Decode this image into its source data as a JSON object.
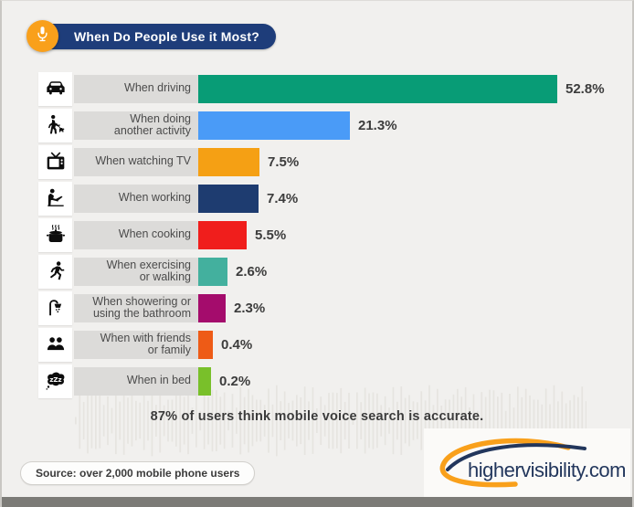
{
  "header": {
    "title": "When Do People Use it Most?",
    "badge_icon": "microphone-icon",
    "pill_color": "#1e3d7a",
    "badge_color": "#f9a01b"
  },
  "chart_data": {
    "type": "bar",
    "orientation": "horizontal",
    "unit": "percent",
    "title": "When Do People Use it Most?",
    "categories": [
      "When driving",
      "When doing\nanother activity",
      "When watching TV",
      "When working",
      "When cooking",
      "When exercising\nor walking",
      "When showering or\nusing the bathroom",
      "When with friends\nor family",
      "When in bed"
    ],
    "values": [
      52.8,
      21.3,
      7.5,
      7.4,
      5.5,
      2.6,
      2.3,
      0.4,
      0.2
    ],
    "value_labels": [
      "52.8%",
      "21.3%",
      "7.5%",
      "7.4%",
      "5.5%",
      "2.6%",
      "2.3%",
      "0.4%",
      "0.2%"
    ],
    "bar_colors": [
      "#089c76",
      "#4a9bf7",
      "#f5a014",
      "#1e3c70",
      "#f01e1c",
      "#43b09e",
      "#a40c6c",
      "#ee5b16",
      "#79c02a"
    ],
    "icons": [
      "car-icon",
      "dog-walking-icon",
      "tv-icon",
      "working-laptop-icon",
      "cooking-pot-icon",
      "running-icon",
      "shower-icon",
      "friends-icon",
      "bed-sleep-icon"
    ],
    "xlim": [
      0,
      60
    ],
    "grid": false,
    "legend": false
  },
  "footnote": {
    "stat": "87% of users think mobile voice search is accurate."
  },
  "source": {
    "label": "Source: over 2,000 mobile phone users"
  },
  "branding": {
    "site": "highervisibility.com",
    "swoosh_color": "#f9a01b",
    "text_color": "#22365c"
  },
  "theme": {
    "background": "#f1f0ee",
    "label_box": "#dcdbd9",
    "icon_box": "#ffffff",
    "text_dark": "#3c3c3c",
    "frame_border": "#c9c7c3",
    "bottom_strip": "#7c7b77"
  }
}
